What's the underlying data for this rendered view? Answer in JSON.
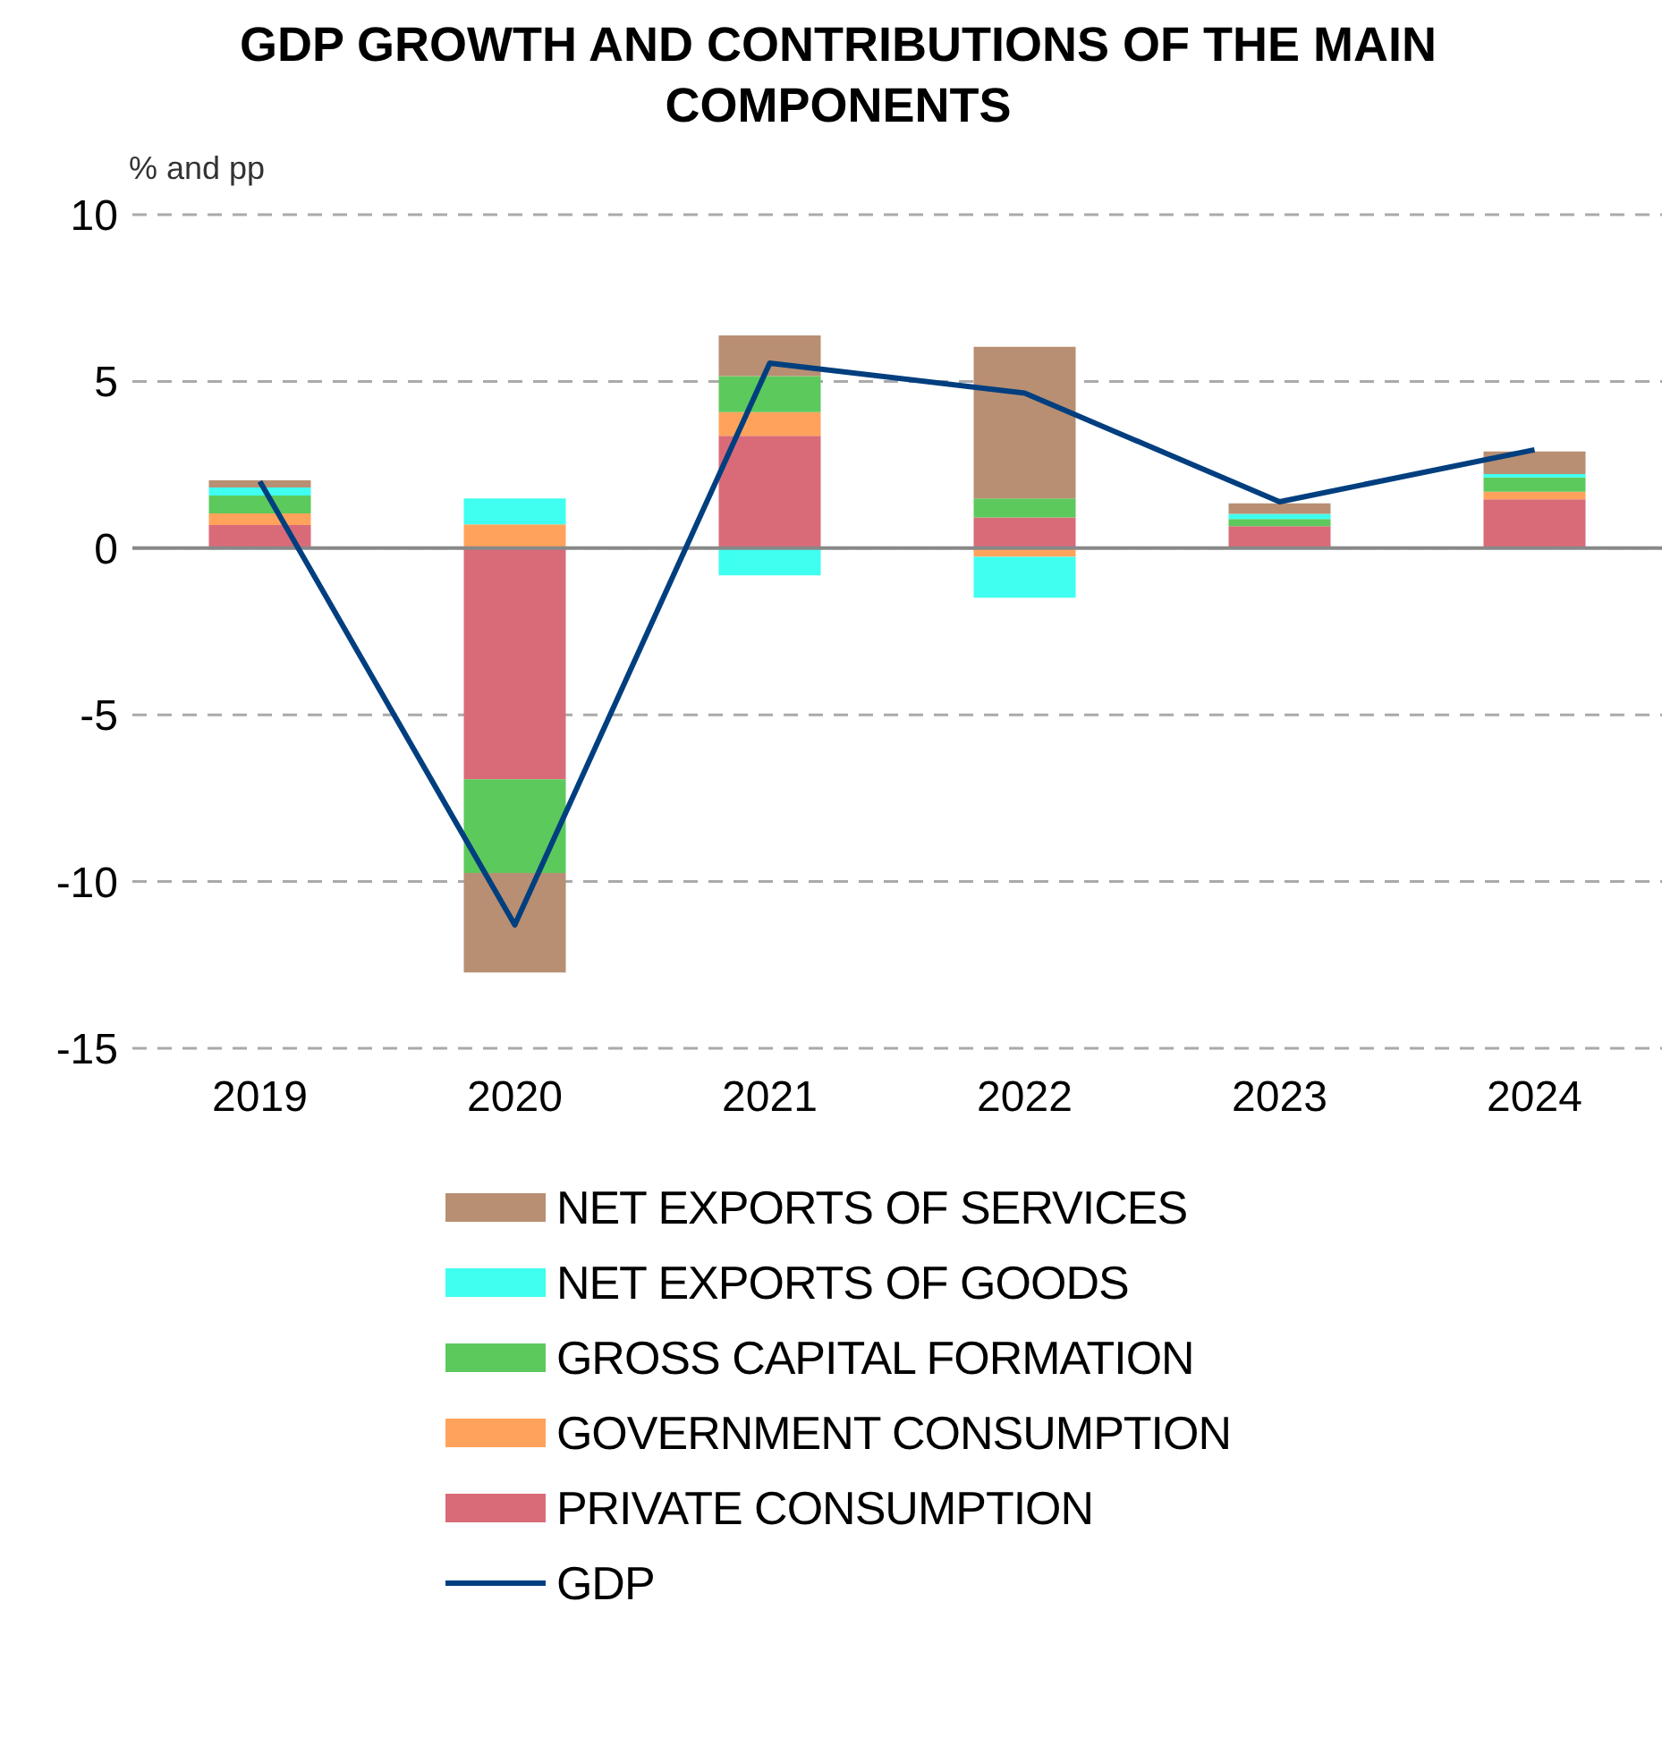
{
  "chart_data": {
    "type": "bar",
    "title": "GDP GROWTH AND CONTRIBUTIONS OF THE MAIN COMPONENTS",
    "ylabel": "% and pp",
    "categories": [
      "2019",
      "2020",
      "2021",
      "2022",
      "2023",
      "2024"
    ],
    "stacked": true,
    "ylim": [
      -15,
      10
    ],
    "yticks": [
      -15,
      -10,
      -5,
      0,
      5,
      10
    ],
    "grid": "y",
    "legend": "bottom",
    "series": [
      {
        "name": "PRIVATE CONSUMPTION",
        "color": "#d96b78",
        "values": [
          0.69,
          -6.93,
          3.37,
          0.92,
          0.66,
          1.46
        ]
      },
      {
        "name": "GOVERNMENT CONSUMPTION",
        "color": "#ffa35c",
        "values": [
          0.35,
          0.71,
          0.71,
          -0.26,
          0.0,
          0.23
        ]
      },
      {
        "name": "GROSS CAPITAL FORMATION",
        "color": "#5cc95c",
        "values": [
          0.54,
          -2.81,
          1.08,
          0.57,
          0.21,
          0.43
        ]
      },
      {
        "name": "NET EXPORTS OF GOODS",
        "color": "#3ffff0",
        "values": [
          0.24,
          0.78,
          -0.82,
          -1.23,
          0.16,
          0.1
        ]
      },
      {
        "name": "NET EXPORTS OF SERVICES",
        "color": "#b88f72",
        "values": [
          0.21,
          -2.99,
          1.22,
          4.55,
          0.31,
          0.68
        ]
      },
      {
        "name": "GDP",
        "type": "line",
        "color": "#003f7f",
        "values": [
          2.0,
          -11.3,
          5.55,
          4.65,
          1.39,
          2.95
        ]
      }
    ]
  }
}
